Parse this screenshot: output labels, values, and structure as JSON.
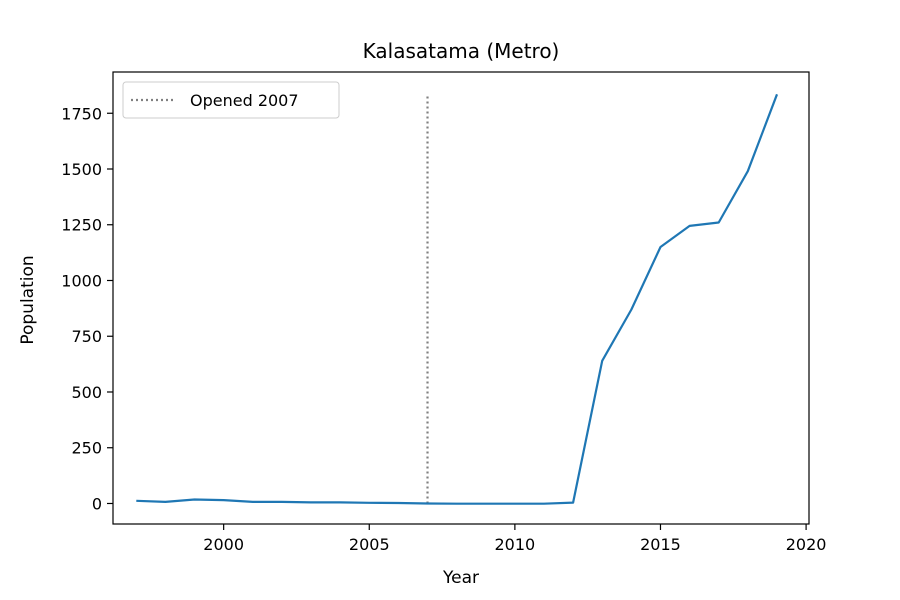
{
  "chart_data": {
    "type": "line",
    "title": "Kalasatama (Metro)",
    "xlabel": "Year",
    "ylabel": "Population",
    "xlim": [
      1996.2,
      2020.1
    ],
    "ylim": [
      -92,
      1935
    ],
    "x_ticks": [
      2000,
      2005,
      2010,
      2015,
      2020
    ],
    "y_ticks": [
      0,
      250,
      500,
      750,
      1000,
      1250,
      1500,
      1750
    ],
    "grid": false,
    "legend_position": "upper left",
    "series": [
      {
        "color": "#1f77b4",
        "x": [
          1997,
          1998,
          1999,
          2000,
          2001,
          2002,
          2003,
          2004,
          2005,
          2006,
          2007,
          2008,
          2009,
          2010,
          2011,
          2012,
          2013,
          2014,
          2015,
          2016,
          2017,
          2018,
          2019
        ],
        "y": [
          12,
          7,
          18,
          15,
          7,
          7,
          5,
          5,
          3,
          2,
          0,
          -1,
          -1,
          -1,
          -1,
          4,
          640,
          870,
          1150,
          1245,
          1260,
          1490,
          1835
        ]
      }
    ],
    "reference_lines": [
      {
        "name": "Opened 2007",
        "x": 2007,
        "y_range": [
          0,
          1830
        ],
        "color": "#808080",
        "style": "dotted"
      }
    ]
  }
}
